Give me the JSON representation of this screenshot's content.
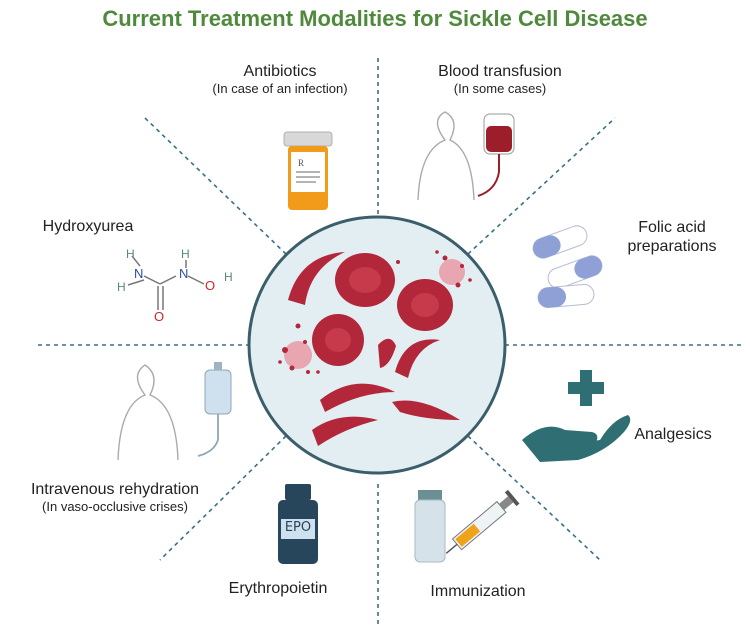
{
  "title": "Current Treatment Modalities for Sickle Cell Disease",
  "center": {
    "icon": "sickle-cells-icon"
  },
  "treatments": [
    {
      "key": "antibiotics",
      "label": "Antibiotics",
      "note": "(In case of an infection)",
      "icon": "pill-bottle-icon"
    },
    {
      "key": "blood",
      "label": "Blood transfusion",
      "note": "(In some cases)",
      "icon": "blood-bag-icon"
    },
    {
      "key": "folic",
      "label": "Folic acid preparations",
      "note": "",
      "icon": "capsules-icon"
    },
    {
      "key": "analgesics",
      "label": "Analgesics",
      "note": "",
      "icon": "hand-cross-icon"
    },
    {
      "key": "immunization",
      "label": "Immunization",
      "note": "",
      "icon": "vaccine-icon"
    },
    {
      "key": "epo",
      "label": "Erythropoietin",
      "note": "",
      "icon": "epo-bottle-icon",
      "bottle_text": "EPO"
    },
    {
      "key": "iv",
      "label": "Intravenous rehydration",
      "note": "(In vaso-occlusive crises)",
      "icon": "iv-drip-icon"
    },
    {
      "key": "hydroxyurea",
      "label": "Hydroxyurea",
      "note": "",
      "icon": "molecule-icon"
    }
  ],
  "molecule_atoms": {
    "n": "N",
    "h": "H",
    "o": "O"
  },
  "colors": {
    "title": "#4f8a3c",
    "divider": "#3a6f86",
    "circle_fill": "#e3eef3",
    "circle_border": "#3a5e6a",
    "cell": "#b3273a",
    "accent": "#2f6f73"
  }
}
